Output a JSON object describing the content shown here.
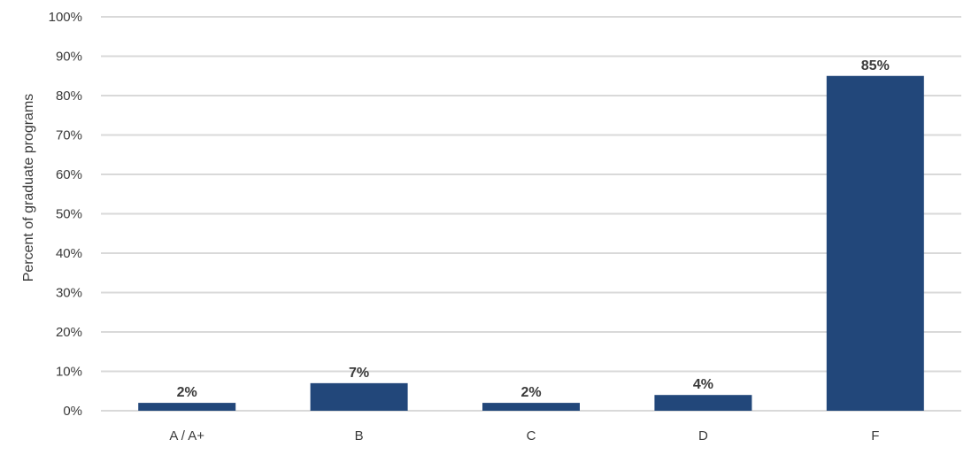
{
  "chart_data": {
    "type": "bar",
    "categories": [
      "A / A+",
      "B",
      "C",
      "D",
      "F"
    ],
    "values": [
      2,
      7,
      2,
      4,
      85
    ],
    "data_labels": [
      "2%",
      "7%",
      "2%",
      "4%",
      "85%"
    ],
    "xlabel": "",
    "ylabel": "Percent of graduate programs",
    "ylim": [
      0,
      100
    ],
    "yticks": [
      0,
      10,
      20,
      30,
      40,
      50,
      60,
      70,
      80,
      90,
      100
    ],
    "ytick_labels": [
      "0%",
      "10%",
      "20%",
      "30%",
      "40%",
      "50%",
      "60%",
      "70%",
      "80%",
      "90%",
      "100%"
    ],
    "grid": true,
    "legend": "none",
    "colors": {
      "bar": "#22477a",
      "grid": "#d9d9d9"
    }
  }
}
